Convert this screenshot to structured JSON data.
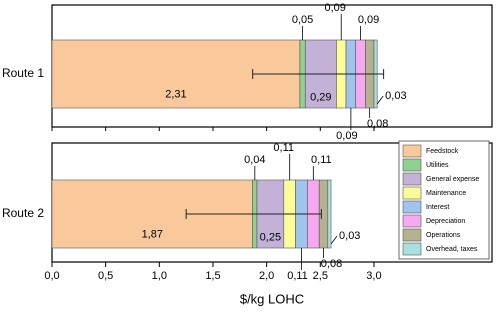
{
  "chart_data": {
    "type": "bar",
    "orientation": "horizontal",
    "stacked": true,
    "categories": [
      "Route 1",
      "Route 2"
    ],
    "series": [
      {
        "name": "Feedstock",
        "color": "#f9c89b",
        "values": [
          2.31,
          1.87
        ],
        "value_labels": [
          "2,31",
          "1,87"
        ]
      },
      {
        "name": "Utilities",
        "color": "#8fd18f",
        "values": [
          0.05,
          0.04
        ],
        "value_labels": [
          "0,05",
          "0,04"
        ]
      },
      {
        "name": "General expense",
        "color": "#c3b1d8",
        "values": [
          0.29,
          0.25
        ],
        "value_labels": [
          "0,29",
          "0,25"
        ]
      },
      {
        "name": "Maintenance",
        "color": "#fcfc99",
        "values": [
          0.09,
          0.11
        ],
        "value_labels": [
          "0,09",
          "0,11"
        ]
      },
      {
        "name": "Interest",
        "color": "#9fc4ee",
        "values": [
          0.09,
          0.11
        ],
        "value_labels": [
          "0,09",
          "0,11"
        ]
      },
      {
        "name": "Depreciation",
        "color": "#f7a8f0",
        "values": [
          0.09,
          0.11
        ],
        "value_labels": [
          "0,09",
          "0,11"
        ]
      },
      {
        "name": "Operations",
        "color": "#b5b38f",
        "values": [
          0.08,
          0.08
        ],
        "value_labels": [
          "0,08",
          "0,08"
        ]
      },
      {
        "name": "Overhead, taxes",
        "color": "#a8e0e0",
        "values": [
          0.03,
          0.03
        ],
        "value_labels": [
          "0,03",
          "0,03"
        ]
      }
    ],
    "error_low": [
      1.87,
      1.25
    ],
    "error_high": [
      3.09,
      2.51
    ],
    "xlabel": "$/kg LOHC",
    "xlim": [
      0,
      4.1
    ],
    "xticks": [
      {
        "value": 0,
        "label": "0,0"
      },
      {
        "value": 0.5,
        "label": "0,5"
      },
      {
        "value": 1,
        "label": "1,0"
      },
      {
        "value": 1.5,
        "label": "1,5"
      },
      {
        "value": 2,
        "label": "2,0"
      },
      {
        "value": 2.5,
        "label": "2,5"
      },
      {
        "value": 3,
        "label": "3,0"
      }
    ],
    "legend_position": "lower right",
    "grid": false
  }
}
